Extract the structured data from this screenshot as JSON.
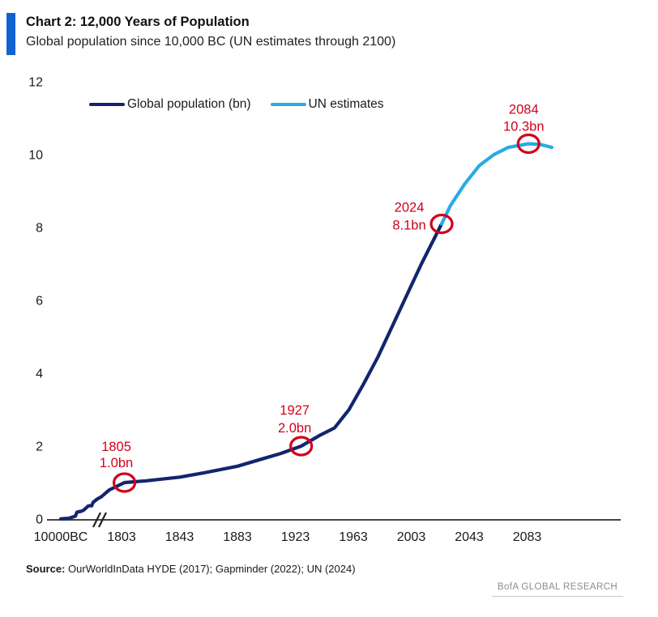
{
  "header": {
    "title": "Chart 2: 12,000 Years of Population",
    "subtitle": "Global population since 10,000 BC (UN estimates through 2100)"
  },
  "chart_data": {
    "type": "line",
    "title": "Chart 2: 12,000 Years of Population",
    "subtitle": "Global population since 10,000 BC (UN estimates through 2100)",
    "ylim": [
      0,
      12
    ],
    "yticks": [
      0,
      2,
      4,
      6,
      8,
      10,
      12
    ],
    "xticks": [
      {
        "label": "10000BC",
        "year": -10000
      },
      {
        "label": "1803",
        "year": 1803
      },
      {
        "label": "1843",
        "year": 1843
      },
      {
        "label": "1883",
        "year": 1883
      },
      {
        "label": "1923",
        "year": 1923
      },
      {
        "label": "1963",
        "year": 1963
      },
      {
        "label": "2003",
        "year": 2003
      },
      {
        "label": "2043",
        "year": 2043
      },
      {
        "label": "2083",
        "year": 2083
      }
    ],
    "axis_break_after_first_tick": true,
    "grid": false,
    "legend_position": "top-left-inside",
    "series": [
      {
        "name": "Global population (bn)",
        "color": "#12256e",
        "points": [
          [
            -10000,
            0.004
          ],
          [
            -8000,
            0.01
          ],
          [
            -5000,
            0.02
          ],
          [
            -3000,
            0.05
          ],
          [
            -1000,
            0.08
          ],
          [
            1,
            0.19
          ],
          [
            200,
            0.2
          ],
          [
            500,
            0.21
          ],
          [
            800,
            0.24
          ],
          [
            1000,
            0.28
          ],
          [
            1200,
            0.36
          ],
          [
            1350,
            0.37
          ],
          [
            1400,
            0.36
          ],
          [
            1500,
            0.46
          ],
          [
            1600,
            0.55
          ],
          [
            1700,
            0.61
          ],
          [
            1750,
            0.8
          ],
          [
            1805,
            1.0
          ],
          [
            1820,
            1.05
          ],
          [
            1843,
            1.15
          ],
          [
            1860,
            1.27
          ],
          [
            1883,
            1.45
          ],
          [
            1900,
            1.65
          ],
          [
            1913,
            1.8
          ],
          [
            1927,
            2.0
          ],
          [
            1940,
            2.3
          ],
          [
            1950,
            2.5
          ],
          [
            1960,
            3.0
          ],
          [
            1970,
            3.7
          ],
          [
            1980,
            4.45
          ],
          [
            1990,
            5.3
          ],
          [
            2000,
            6.15
          ],
          [
            2010,
            7.0
          ],
          [
            2024,
            8.1
          ]
        ]
      },
      {
        "name": "UN estimates",
        "color": "#29abe2",
        "points": [
          [
            2024,
            8.1
          ],
          [
            2030,
            8.6
          ],
          [
            2040,
            9.2
          ],
          [
            2050,
            9.7
          ],
          [
            2060,
            10.0
          ],
          [
            2070,
            10.2
          ],
          [
            2084,
            10.3
          ],
          [
            2092,
            10.28
          ],
          [
            2100,
            10.2
          ]
        ]
      }
    ],
    "annotations": [
      {
        "year": 1805,
        "value": 1.0,
        "label_year": "1805",
        "label_value": "1.0bn"
      },
      {
        "year": 1927,
        "value": 2.0,
        "label_year": "1927",
        "label_value": "2.0bn"
      },
      {
        "year": 2024,
        "value": 8.1,
        "label_year": "2024",
        "label_value": "8.1bn"
      },
      {
        "year": 2084,
        "value": 10.3,
        "label_year": "2084",
        "label_value": "10.3bn"
      }
    ],
    "annotation_color": "#d0021b"
  },
  "footer": {
    "source_label": "Source:",
    "source_text": " OurWorldInData HYDE (2017); Gapminder (2022); UN (2024)",
    "brand": "BofA GLOBAL RESEARCH"
  },
  "colors": {
    "accent_bar": "#1262d1",
    "navy": "#12256e",
    "light_blue": "#29abe2",
    "red": "#d0021b",
    "axis": "#444444",
    "text": "#1a1a1a",
    "brand_gray": "#8c8c8c"
  }
}
